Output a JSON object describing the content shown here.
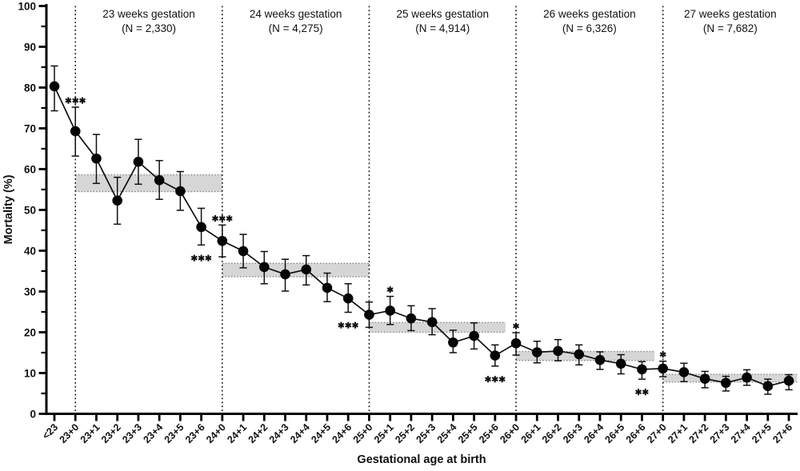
{
  "chart_data": {
    "type": "line",
    "ylabel": "Mortality (%)",
    "xlabel": "Gestational age at birth",
    "ylim": [
      0,
      100
    ],
    "ytick_step": 10,
    "ytick_minor_step": 5,
    "grid": false,
    "legend": "none",
    "categories": [
      "<23",
      "23+0",
      "23+1",
      "23+2",
      "23+3",
      "23+4",
      "23+5",
      "23+6",
      "24+0",
      "24+1",
      "24+2",
      "24+3",
      "24+4",
      "24+5",
      "24+6",
      "25+0",
      "25+1",
      "25+2",
      "25+3",
      "25+4",
      "25+5",
      "25+6",
      "26+0",
      "26+1",
      "26+2",
      "26+3",
      "26+4",
      "26+5",
      "26+6",
      "27+0",
      "27+1",
      "27+2",
      "27+3",
      "27+4",
      "27+5",
      "27+6"
    ],
    "series": [
      {
        "name": "Mortality (%) with 95% CI",
        "points": [
          {
            "x": "<23",
            "y": 80.3,
            "lo": 74.3,
            "hi": 85.3
          },
          {
            "x": "23+0",
            "y": 69.3,
            "lo": 63.2,
            "hi": 75.2
          },
          {
            "x": "23+1",
            "y": 62.6,
            "lo": 56.5,
            "hi": 68.5
          },
          {
            "x": "23+2",
            "y": 52.3,
            "lo": 46.5,
            "hi": 58.0
          },
          {
            "x": "23+3",
            "y": 61.8,
            "lo": 56.3,
            "hi": 67.3
          },
          {
            "x": "23+4",
            "y": 57.3,
            "lo": 52.6,
            "hi": 62.1
          },
          {
            "x": "23+5",
            "y": 54.6,
            "lo": 49.9,
            "hi": 59.4
          },
          {
            "x": "23+6",
            "y": 45.8,
            "lo": 41.4,
            "hi": 50.4
          },
          {
            "x": "24+0",
            "y": 42.4,
            "lo": 38.5,
            "hi": 46.3
          },
          {
            "x": "24+1",
            "y": 39.9,
            "lo": 35.8,
            "hi": 44.0
          },
          {
            "x": "24+2",
            "y": 36.0,
            "lo": 31.9,
            "hi": 39.8
          },
          {
            "x": "24+3",
            "y": 34.2,
            "lo": 30.1,
            "hi": 37.9
          },
          {
            "x": "24+4",
            "y": 35.4,
            "lo": 31.6,
            "hi": 38.8
          },
          {
            "x": "24+5",
            "y": 30.9,
            "lo": 27.5,
            "hi": 34.5
          },
          {
            "x": "24+6",
            "y": 28.3,
            "lo": 24.9,
            "hi": 31.9
          },
          {
            "x": "25+0",
            "y": 24.3,
            "lo": 21.2,
            "hi": 27.4
          },
          {
            "x": "25+1",
            "y": 25.3,
            "lo": 21.9,
            "hi": 28.8
          },
          {
            "x": "25+2",
            "y": 23.4,
            "lo": 20.4,
            "hi": 26.5
          },
          {
            "x": "25+3",
            "y": 22.5,
            "lo": 19.4,
            "hi": 25.8
          },
          {
            "x": "25+4",
            "y": 17.5,
            "lo": 15.0,
            "hi": 20.5
          },
          {
            "x": "25+5",
            "y": 19.1,
            "lo": 15.9,
            "hi": 22.3
          },
          {
            "x": "25+6",
            "y": 14.3,
            "lo": 11.7,
            "hi": 16.9
          },
          {
            "x": "26+0",
            "y": 17.3,
            "lo": 14.4,
            "hi": 19.9
          },
          {
            "x": "26+1",
            "y": 15.1,
            "lo": 12.5,
            "hi": 17.8
          },
          {
            "x": "26+2",
            "y": 15.4,
            "lo": 13.0,
            "hi": 18.2
          },
          {
            "x": "26+3",
            "y": 14.6,
            "lo": 12.0,
            "hi": 16.9
          },
          {
            "x": "26+4",
            "y": 13.2,
            "lo": 10.9,
            "hi": 15.2
          },
          {
            "x": "26+5",
            "y": 12.3,
            "lo": 9.8,
            "hi": 14.5
          },
          {
            "x": "26+6",
            "y": 10.9,
            "lo": 8.5,
            "hi": 12.8
          },
          {
            "x": "27+0",
            "y": 11.1,
            "lo": 9.1,
            "hi": 12.9
          },
          {
            "x": "27+1",
            "y": 10.2,
            "lo": 7.9,
            "hi": 12.4
          },
          {
            "x": "27+2",
            "y": 8.6,
            "lo": 6.4,
            "hi": 10.4
          },
          {
            "x": "27+3",
            "y": 7.6,
            "lo": 5.6,
            "hi": 9.2
          },
          {
            "x": "27+4",
            "y": 8.9,
            "lo": 7.0,
            "hi": 10.8
          },
          {
            "x": "27+5",
            "y": 6.8,
            "lo": 4.8,
            "hi": 8.5
          },
          {
            "x": "27+6",
            "y": 8.1,
            "lo": 5.9,
            "hi": 9.6
          }
        ]
      }
    ],
    "week_groups": [
      {
        "label": "23 weeks gestation",
        "n_label": "(N = 2,330)",
        "from": "23+0",
        "to": "24+0",
        "band": {
          "lo": 54.5,
          "hi": 58.6,
          "from_idx": 1,
          "to_idx": 8
        }
      },
      {
        "label": "24 weeks gestation",
        "n_label": "(N = 4,275)",
        "from": "24+0",
        "to": "25+0",
        "band": {
          "lo": 33.6,
          "hi": 36.9,
          "from_idx": 8,
          "to_idx": 15
        }
      },
      {
        "label": "25 weeks gestation",
        "n_label": "(N = 4,914)",
        "from": "25+0",
        "to": "26+0",
        "band": {
          "lo": 20.0,
          "hi": 22.4,
          "from_idx": 15,
          "to_idx": 21.5
        }
      },
      {
        "label": "26 weeks gestation",
        "n_label": "(N = 6,326)",
        "from": "26+0",
        "to": "27+0",
        "band": {
          "lo": 13.1,
          "hi": 15.3,
          "from_idx": 22,
          "to_idx": 28.6
        }
      },
      {
        "label": "27 weeks gestation",
        "n_label": "(N = 7,682)",
        "from": "27+0",
        "to": null,
        "band": {
          "lo": 7.8,
          "hi": 9.7,
          "from_idx": 29,
          "to_idx": 35.4
        }
      }
    ],
    "sig_markers": [
      {
        "at": "23+0",
        "text": "***",
        "position": "above"
      },
      {
        "at": "23+6",
        "text": "***",
        "position": "below"
      },
      {
        "at": "24+0",
        "text": "***",
        "position": "above"
      },
      {
        "at": "24+6",
        "text": "***",
        "position": "below"
      },
      {
        "at": "25+1",
        "text": "*",
        "position": "above"
      },
      {
        "at": "25+6",
        "text": "***",
        "position": "below"
      },
      {
        "at": "26+0",
        "text": "*",
        "position": "above"
      },
      {
        "at": "26+6",
        "text": "**",
        "position": "below"
      },
      {
        "at": "27+0",
        "text": "*",
        "position": "above"
      }
    ],
    "colors": {
      "point": "#050505",
      "line": "#101010",
      "error_bar": "#101010",
      "band_fill": "#d6d6d6",
      "band_edge": "#878787",
      "separator": "#1a1a1a",
      "axis": "#000000",
      "background": "#ffffff"
    }
  }
}
